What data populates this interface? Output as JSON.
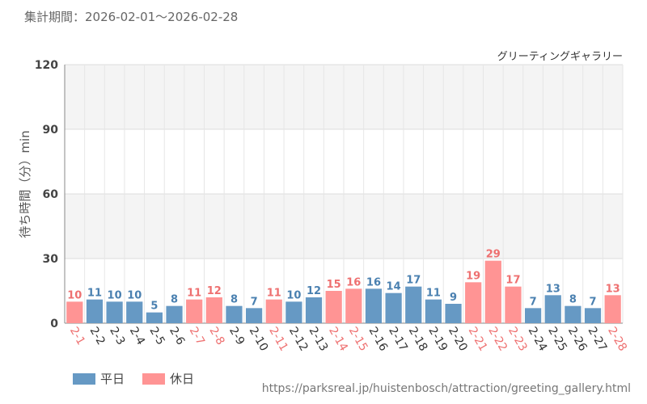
{
  "header": {
    "period_label": "集計期間：2026-02-01〜2026-02-28"
  },
  "footer": {
    "source_url": "https://parksreal.jp/huistenbosch/attraction/greeting_gallery.html"
  },
  "colors": {
    "weekday": "#6699c4",
    "holiday": "#ff9494",
    "weekday_text": "#4a80b0",
    "holiday_text": "#ee7070"
  },
  "chart_data": {
    "type": "bar",
    "title": "グリーティングギャラリー",
    "xlabel": "",
    "ylabel": "待ち時間（分）min",
    "ylim": [
      0,
      120
    ],
    "yticks": [
      0,
      30,
      60,
      90,
      120
    ],
    "categories": [
      "2-1",
      "2-2",
      "2-3",
      "2-4",
      "2-5",
      "2-6",
      "2-7",
      "2-8",
      "2-9",
      "2-10",
      "2-11",
      "2-12",
      "2-13",
      "2-14",
      "2-15",
      "2-16",
      "2-17",
      "2-18",
      "2-19",
      "2-20",
      "2-21",
      "2-22",
      "2-23",
      "2-24",
      "2-25",
      "2-26",
      "2-27",
      "2-28"
    ],
    "values": [
      10,
      11,
      10,
      10,
      5,
      8,
      11,
      12,
      8,
      7,
      11,
      10,
      12,
      15,
      16,
      16,
      14,
      17,
      11,
      9,
      19,
      29,
      17,
      7,
      13,
      8,
      7,
      13
    ],
    "day_type": [
      "holiday",
      "weekday",
      "weekday",
      "weekday",
      "weekday",
      "weekday",
      "holiday",
      "holiday",
      "weekday",
      "weekday",
      "holiday",
      "weekday",
      "weekday",
      "holiday",
      "holiday",
      "weekday",
      "weekday",
      "weekday",
      "weekday",
      "weekday",
      "holiday",
      "holiday",
      "holiday",
      "weekday",
      "weekday",
      "weekday",
      "weekday",
      "holiday"
    ],
    "legend": [
      {
        "key": "weekday",
        "label": "平日"
      },
      {
        "key": "holiday",
        "label": "休日"
      }
    ]
  }
}
